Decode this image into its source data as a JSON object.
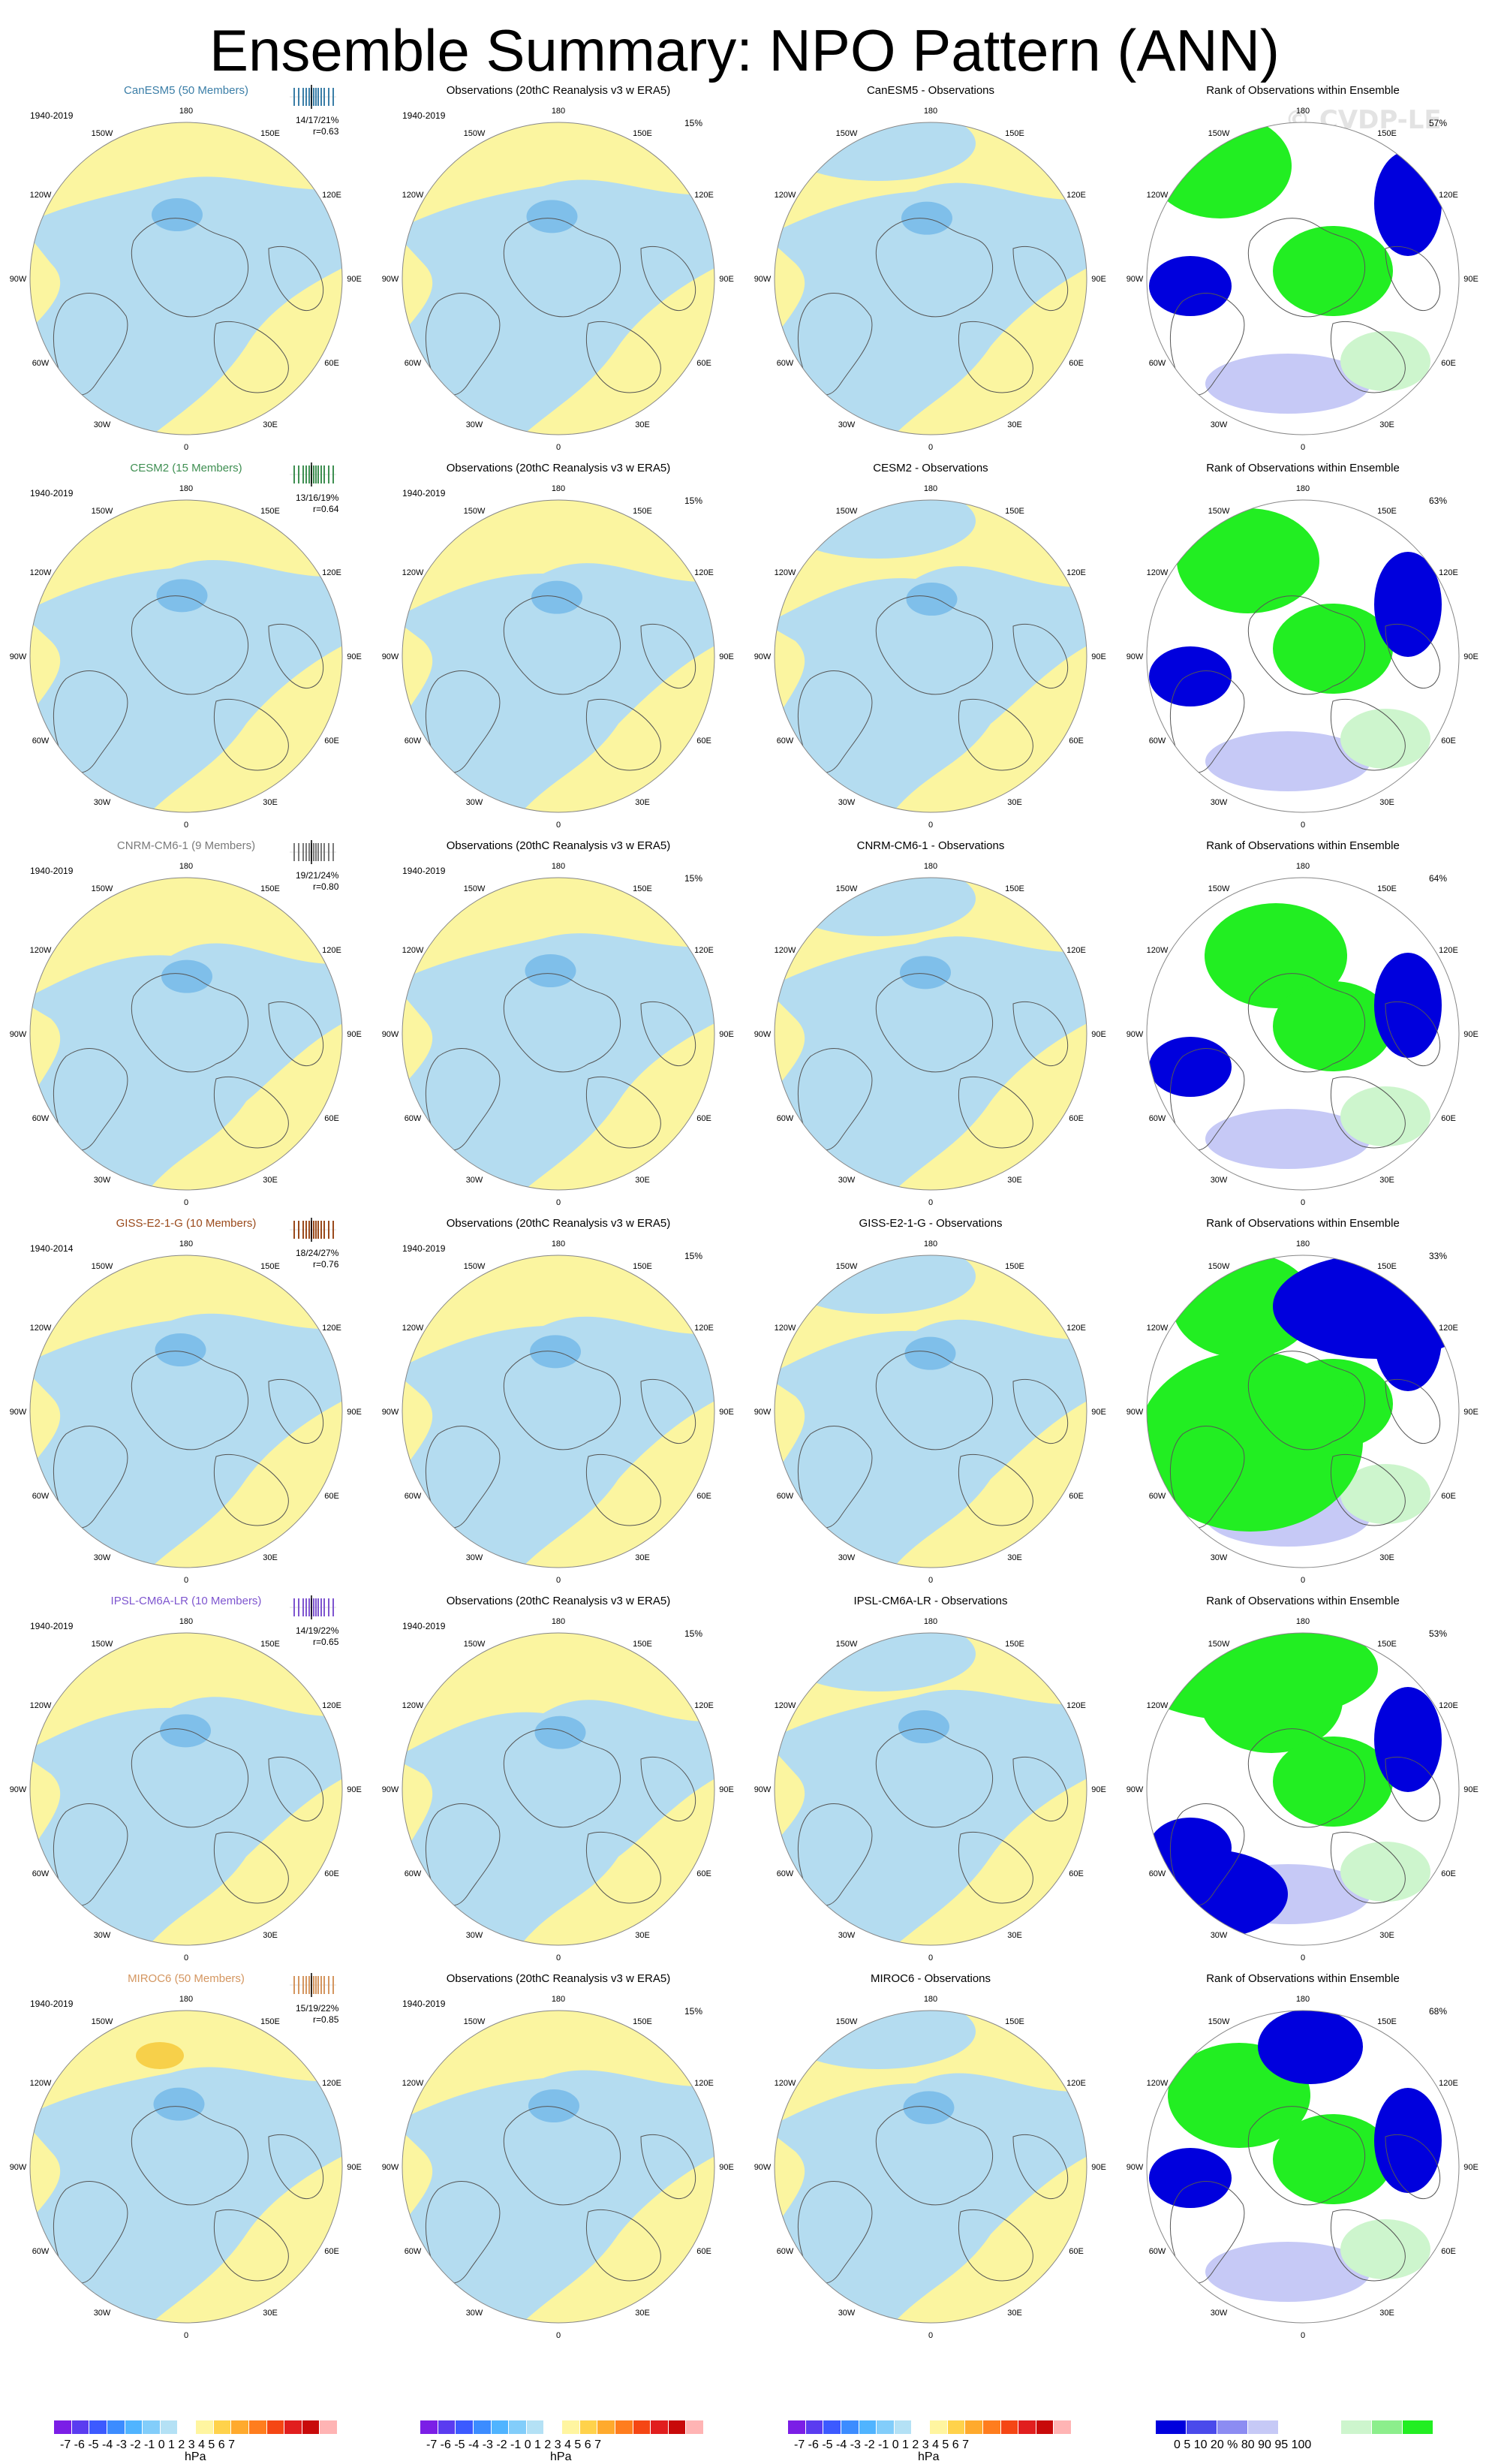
{
  "page": {
    "title": "Ensemble Summary: NPO Pattern (ANN)",
    "watermark": "© CVDP-LE"
  },
  "lon_labels": [
    "180",
    "150E",
    "120E",
    "90E",
    "60E",
    "30E",
    "0",
    "30W",
    "60W",
    "90W",
    "120W",
    "150W"
  ],
  "colors": {
    "blue_light": "#b4dcf0",
    "blue_mid": "#7fbfea",
    "yellow": "#fbf5a0",
    "gold": "#f7d04a",
    "rank_green": "#22ee22",
    "rank_blue": "#0000dd",
    "rank_lavender": "#c6c9f6",
    "rank_lightgreen": "#cdf5cd"
  },
  "rows": [
    {
      "id": "canesm5",
      "model_title": "CanESM5 (50 Members)",
      "model_color": "#3b7ea7",
      "period": "1940-2019",
      "stats": "14/17/21%",
      "r": "r=0.63",
      "obs_title": "Observations (20thC Reanalysis v3 w ERA5)",
      "obs_period": "1940-2019",
      "obs_pct": "15%",
      "diff_title": "CanESM5 - Observations",
      "rank_title": "Rank of Observations within Ensemble",
      "rank_pct": "57%"
    },
    {
      "id": "cesm2",
      "model_title": "CESM2 (15 Members)",
      "model_color": "#3f8f52",
      "period": "1940-2019",
      "stats": "13/16/19%",
      "r": "r=0.64",
      "obs_title": "Observations (20thC Reanalysis v3 w ERA5)",
      "obs_period": "1940-2019",
      "obs_pct": "15%",
      "diff_title": "CESM2 - Observations",
      "rank_title": "Rank of Observations within Ensemble",
      "rank_pct": "63%"
    },
    {
      "id": "cnrm",
      "model_title": "CNRM-CM6-1 (9 Members)",
      "model_color": "#7a7a7a",
      "period": "1940-2019",
      "stats": "19/21/24%",
      "r": "r=0.80",
      "obs_title": "Observations (20thC Reanalysis v3 w ERA5)",
      "obs_period": "1940-2019",
      "obs_pct": "15%",
      "diff_title": "CNRM-CM6-1 - Observations",
      "rank_title": "Rank of Observations within Ensemble",
      "rank_pct": "64%"
    },
    {
      "id": "giss",
      "model_title": "GISS-E2-1-G (10 Members)",
      "model_color": "#9a4a1c",
      "period": "1940-2014",
      "stats": "18/24/27%",
      "r": "r=0.76",
      "obs_title": "Observations (20thC Reanalysis v3 w ERA5)",
      "obs_period": "1940-2019",
      "obs_pct": "15%",
      "diff_title": "GISS-E2-1-G - Observations",
      "rank_title": "Rank of Observations within Ensemble",
      "rank_pct": "33%"
    },
    {
      "id": "ipsl",
      "model_title": "IPSL-CM6A-LR (10 Members)",
      "model_color": "#7e55cf",
      "period": "1940-2019",
      "stats": "14/19/22%",
      "r": "r=0.65",
      "obs_title": "Observations (20thC Reanalysis v3 w ERA5)",
      "obs_period": "1940-2019",
      "obs_pct": "15%",
      "diff_title": "IPSL-CM6A-LR - Observations",
      "rank_title": "Rank of Observations within Ensemble",
      "rank_pct": "53%"
    },
    {
      "id": "miroc6",
      "model_title": "MIROC6 (50 Members)",
      "model_color": "#d49660",
      "period": "1940-2019",
      "stats": "15/19/22%",
      "r": "r=0.85",
      "obs_title": "Observations (20thC Reanalysis v3 w ERA5)",
      "obs_period": "1940-2019",
      "obs_pct": "15%",
      "diff_title": "MIROC6 - Observations",
      "rank_title": "Rank of Observations within Ensemble",
      "rank_pct": "68%"
    }
  ],
  "colorbar_hpa": {
    "colors": [
      "#7b1ee6",
      "#5a3cf0",
      "#3c5aff",
      "#3c8cff",
      "#50b4ff",
      "#82cdfa",
      "#b4e1f5",
      "#ffffff",
      "#fff5a0",
      "#ffd24b",
      "#ffaa2d",
      "#ff7d1e",
      "#f54614",
      "#e11e1e",
      "#c80a0a",
      "#ffb4b4"
    ],
    "ticks": "-7 -6 -5 -4 -3 -2 -1 0  1  2  3  4  5  6  7",
    "unit": "hPa"
  },
  "colorbar_rank": {
    "colors": [
      "#0000dd",
      "#4a4aeb",
      "#8c8cf2",
      "#c6c9f6",
      "#ffffff",
      "#ffffff",
      "#cdf5cd",
      "#8cee8c",
      "#22ee22"
    ],
    "ticks": "0   5  10    20    %    80    90  95 100",
    "unit": "%"
  }
}
